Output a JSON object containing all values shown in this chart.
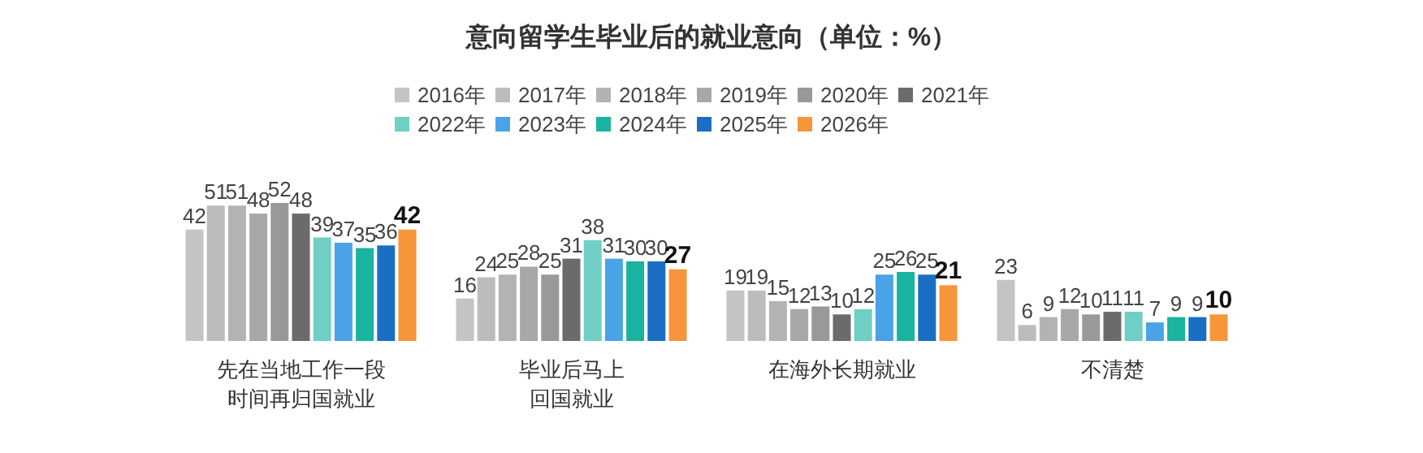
{
  "chart_data": {
    "type": "bar",
    "title": "意向留学生毕业后的就业意向（单位：%）",
    "categories": [
      "先在当地工作一段时间再归国就业",
      "毕业后马上回国就业",
      "在海外长期就业",
      "不清楚"
    ],
    "data_labels": true,
    "legend": "top",
    "series": [
      {
        "name": "2016年",
        "color": "#c4c4c4",
        "values": [
          42,
          16,
          19,
          23
        ]
      },
      {
        "name": "2017年",
        "color": "#bcbcbc",
        "values": [
          51,
          24,
          19,
          6
        ]
      },
      {
        "name": "2018年",
        "color": "#b3b3b3",
        "values": [
          51,
          25,
          15,
          9
        ]
      },
      {
        "name": "2019年",
        "color": "#a8a8a8",
        "values": [
          48,
          28,
          12,
          12
        ]
      },
      {
        "name": "2020年",
        "color": "#999999",
        "values": [
          52,
          25,
          13,
          10
        ]
      },
      {
        "name": "2021年",
        "color": "#6b6b6b",
        "values": [
          48,
          31,
          10,
          11
        ]
      },
      {
        "name": "2022年",
        "color": "#6fcfc4",
        "values": [
          39,
          38,
          12,
          11
        ]
      },
      {
        "name": "2023年",
        "color": "#4aa3e6",
        "values": [
          37,
          31,
          25,
          7
        ]
      },
      {
        "name": "2024年",
        "color": "#19b3a0",
        "values": [
          35,
          30,
          26,
          9
        ]
      },
      {
        "name": "2025年",
        "color": "#1a6fc4",
        "values": [
          36,
          30,
          25,
          9
        ]
      },
      {
        "name": "2026年",
        "color": "#f6953a",
        "values": [
          42,
          27,
          21,
          10
        ]
      }
    ]
  }
}
